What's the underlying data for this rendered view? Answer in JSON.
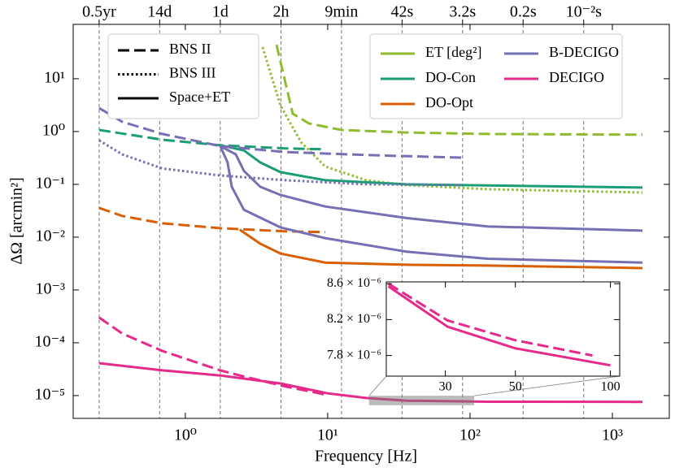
{
  "chart_data": [
    {
      "type": "line",
      "x_label": "Frequency [Hz]",
      "y_label": "ΔΩ [arcmin²]",
      "xlog": true,
      "ylog": true,
      "xlim": [
        0.163,
        2512
      ],
      "ylim": [
        3.7e-06,
        107
      ],
      "xticks": [
        {
          "value": 1,
          "label": "10⁰"
        },
        {
          "value": 10,
          "label": "10¹"
        },
        {
          "value": 100,
          "label": "10²"
        },
        {
          "value": 1000,
          "label": "10³"
        }
      ],
      "yticks": [
        {
          "value": 1e-05,
          "label": "10⁻⁵"
        },
        {
          "value": 0.0001,
          "label": "10⁻⁴"
        },
        {
          "value": 0.001,
          "label": "10⁻³"
        },
        {
          "value": 0.01,
          "label": "10⁻²"
        },
        {
          "value": 0.1,
          "label": "10⁻¹"
        },
        {
          "value": 1,
          "label": "10⁰"
        },
        {
          "value": 10,
          "label": "10¹"
        }
      ],
      "top_ticks": [
        {
          "value": 0.248,
          "label": "0.5yr"
        },
        {
          "value": 0.66,
          "label": "14d"
        },
        {
          "value": 1.76,
          "label": "1d"
        },
        {
          "value": 4.7,
          "label": "2h"
        },
        {
          "value": 12.5,
          "label": "9min"
        },
        {
          "value": 33.3,
          "label": "42s"
        },
        {
          "value": 88.6,
          "label": "3.2s"
        },
        {
          "value": 236,
          "label": "0.2s"
        },
        {
          "value": 629,
          "label": "10⁻²s"
        }
      ],
      "top_grid": true,
      "style_legend": [
        {
          "label": "BNS II",
          "style": "dashed"
        },
        {
          "label": "BNS III",
          "style": "dotted"
        },
        {
          "label": "Space+ET",
          "style": "solid"
        }
      ],
      "series": [
        {
          "name": "ET [deg²]",
          "color": "#8fbb2f",
          "curves": [
            {
              "style": "dashed",
              "x": [
                4.37,
                5.68,
                7.4,
                12.5,
                35.8,
                133,
                1627
              ],
              "values": [
                44,
                2.18,
                1.42,
                1.07,
                0.96,
                0.9,
                0.87
              ]
            },
            {
              "style": "dotted",
              "x": [
                3.49,
                4.66,
                6.5,
                9.6,
                18.6,
                35.8,
                133,
                1627
              ],
              "values": [
                39.6,
                3.1,
                0.63,
                0.218,
                0.12,
                0.097,
                0.081,
                0.07
              ]
            }
          ]
        },
        {
          "name": "DO-Con",
          "color": "#1b9e77",
          "curves": [
            {
              "style": "dashed",
              "x": [
                0.248,
                0.69,
                1.76,
                4.98,
                9.6
              ],
              "values": [
                1.07,
                0.7,
                0.55,
                0.48,
                0.46
              ]
            },
            {
              "style": "solid",
              "x": [
                1.76,
                2.58,
                3.36,
                4.66,
                9.6,
                35.8,
                1627
              ],
              "values": [
                0.55,
                0.44,
                0.26,
                0.17,
                0.12,
                0.1,
                0.087
              ]
            }
          ]
        },
        {
          "name": "DO-Opt",
          "color": "#d95f02",
          "curves": [
            {
              "style": "dashed",
              "x": [
                0.248,
                0.36,
                0.69,
                1.76,
                4.98,
                9.6
              ],
              "values": [
                0.0358,
                0.0252,
                0.0183,
                0.0148,
                0.0129,
                0.0124
              ]
            },
            {
              "style": "solid",
              "x": [
                2.41,
                3.36,
                4.66,
                9.6,
                35.8,
                133,
                1627
              ],
              "values": [
                0.0138,
                0.0075,
                0.0049,
                0.0033,
                0.003,
                0.0029,
                0.0026
              ]
            }
          ]
        },
        {
          "name": "B-DECIGO",
          "color": "#7570b3",
          "curves": [
            {
              "style": "dashed",
              "x": [
                0.248,
                0.36,
                0.69,
                1.76,
                4.98,
                18.6,
                88.4
              ],
              "values": [
                2.79,
                1.53,
                0.9,
                0.53,
                0.41,
                0.36,
                0.32
              ]
            },
            {
              "style": "dotted",
              "x": [
                0.248,
                0.36,
                0.69,
                1.76,
                4.98,
                18.6,
                88.4
              ],
              "values": [
                0.68,
                0.37,
                0.2,
                0.147,
                0.12,
                0.1,
                0.097
              ]
            },
            {
              "style": "solid",
              "x": [
                1.76,
                2.26,
                2.58,
                3.36,
                4.66,
                9.6,
                35.8,
                133,
                1627
              ],
              "values": [
                0.53,
                0.37,
                0.18,
                0.09,
                0.063,
                0.038,
                0.023,
                0.016,
                0.0133
              ]
            },
            {
              "style": "solid",
              "x": [
                1.76,
                1.98,
                2.12,
                2.58,
                4.66,
                9.6,
                35.8,
                133,
                1627
              ],
              "values": [
                0.53,
                0.26,
                0.09,
                0.033,
                0.0153,
                0.0096,
                0.0053,
                0.0039,
                0.0033
              ]
            }
          ]
        },
        {
          "name": "DECIGO",
          "color": "#e7298a",
          "curves": [
            {
              "style": "dashed",
              "x": [
                0.248,
                0.36,
                0.69,
                1.76,
                2.58,
                4.98,
                9.6
              ],
              "values": [
                0.0003,
                0.00015,
                7e-05,
                3e-05,
                2.3e-05,
                1.5e-05,
                1.05e-05
              ]
            },
            {
              "style": "solid",
              "x": [
                0.248,
                0.69,
                1.76,
                4.66,
                10,
                18.6,
                35.8,
                133,
                1627
              ],
              "values": [
                4.1e-05,
                3e-05,
                2.4e-05,
                1.7e-05,
                1.1e-05,
                9e-06,
                8e-06,
                7.65e-06,
                7.6e-06
              ]
            }
          ]
        }
      ]
    },
    {
      "type": "line",
      "xlog": true,
      "ylog": false,
      "xlim": [
        19.5,
        107
      ],
      "ylim": [
        7.57e-06,
        8.62e-06
      ],
      "xticks": [
        30,
        50,
        100
      ],
      "yticks": [
        {
          "value": 7.8e-06,
          "label": "7.8 × 10⁻⁶"
        },
        {
          "value": 8.2e-06,
          "label": "8.2 × 10⁻⁶"
        },
        {
          "value": 8.6e-06,
          "label": "8.6 × 10⁻⁶"
        }
      ],
      "series": [
        {
          "color": "#e7298a",
          "curves": [
            {
              "style": "dashed",
              "x": [
                19.8,
                30.5,
                50,
                87.7
              ],
              "values": [
                8.6e-06,
                8.19e-06,
                7.97e-06,
                7.8e-06
              ]
            },
            {
              "style": "solid",
              "x": [
                19.8,
                30.5,
                50,
                100
              ],
              "values": [
                8.57e-06,
                8.12e-06,
                7.88e-06,
                7.69e-06
              ]
            }
          ]
        }
      ]
    }
  ]
}
